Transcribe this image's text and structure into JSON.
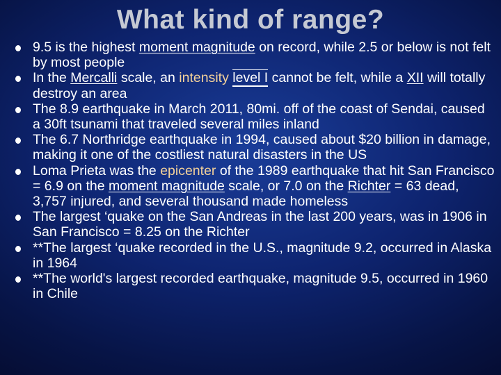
{
  "slide": {
    "title": "What kind of range?"
  },
  "bullets": [
    {
      "parts": [
        {
          "text": "9.5 is the highest "
        },
        {
          "text": "moment magnitude",
          "style": "link"
        },
        {
          "text": " on record, while 2.5 or below  is not felt by most people"
        }
      ]
    },
    {
      "parts": [
        {
          "text": "In the "
        },
        {
          "text": "Mercalli",
          "style": "link"
        },
        {
          "text": " scale, an "
        },
        {
          "text": "intensity",
          "style": "accent"
        },
        {
          "text": " "
        },
        {
          "text": "level I",
          "style": "link-boxed"
        },
        {
          "text": " cannot be felt, while a "
        },
        {
          "text": "XII",
          "style": "link"
        },
        {
          "text": " will totally destroy an area"
        }
      ]
    },
    {
      "parts": [
        {
          "text": "The 8.9 earthquake in March 2011, 80mi. off of the coast of Sendai, caused a 30ft tsunami that traveled several miles inland"
        }
      ]
    },
    {
      "parts": [
        {
          "text": "The 6.7 Northridge earthquake in 1994, caused about $20 billion in damage, making it one of the costliest natural disasters in the US"
        }
      ]
    },
    {
      "parts": [
        {
          "text": "Loma Prieta was the "
        },
        {
          "text": "epicenter",
          "style": "accent"
        },
        {
          "text": " of the 1989 earthquake that hit San Francisco = 6.9 on the "
        },
        {
          "text": "moment magnitude",
          "style": "link"
        },
        {
          "text": " scale, or 7.0 on the "
        },
        {
          "text": "Richter",
          "style": "link"
        },
        {
          "text": " = 63 dead,  3,757 injured, and several thousand made homeless"
        }
      ]
    },
    {
      "parts": [
        {
          "text": "The largest ‘quake on the San Andreas in the last 200 years, was in 1906 in San Francisco = 8.25 on the Richter"
        }
      ]
    },
    {
      "parts": [
        {
          "text": "**The largest ‘quake recorded in the U.S., magnitude 9.2, occurred in Alaska in 1964"
        }
      ]
    },
    {
      "parts": [
        {
          "text": "**The world's largest recorded earthquake, magnitude 9.5, occurred in 1960 in Chile"
        }
      ]
    }
  ],
  "colors": {
    "background": "#0e2470",
    "title": "#c5c9d3",
    "body_text": "#ffffff",
    "accent_text": "#f3d19a"
  },
  "icons": {
    "bullet": "bullet-dot-icon"
  }
}
